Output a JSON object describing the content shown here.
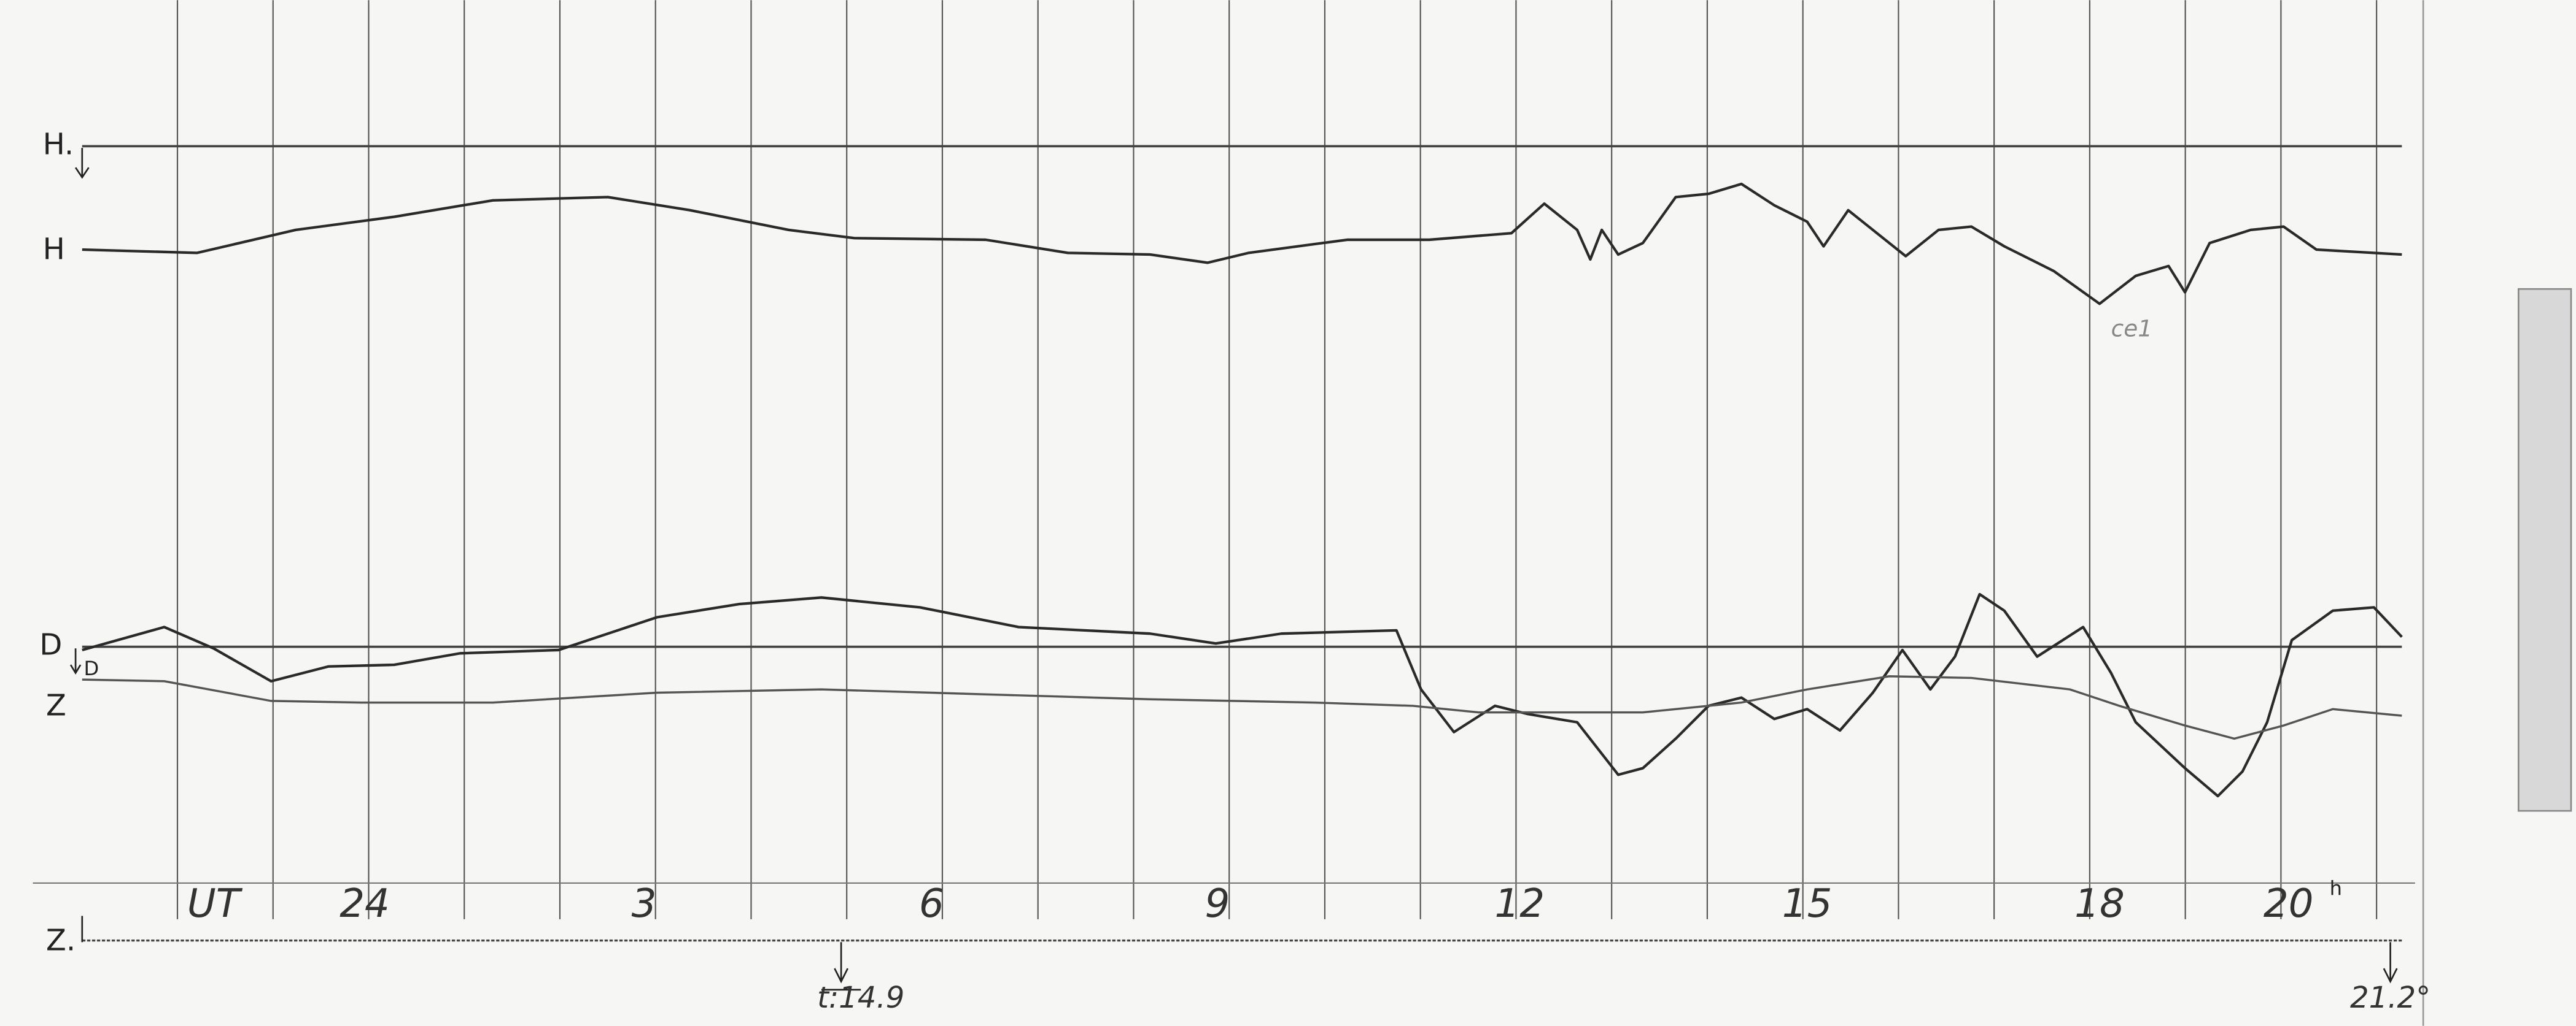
{
  "left_labels": {
    "h0": "H.",
    "h": "H",
    "d": "D",
    "d_small": "D",
    "z": "Z",
    "z0": "Z."
  },
  "time_axis": {
    "unit": "UT",
    "labels": [
      "24",
      "3",
      "6",
      "9",
      "12",
      "15",
      "18",
      "20"
    ],
    "suffix": "h"
  },
  "markers": {
    "start": "t:14.9",
    "end": "21.2°"
  },
  "annotation": "ce1"
}
